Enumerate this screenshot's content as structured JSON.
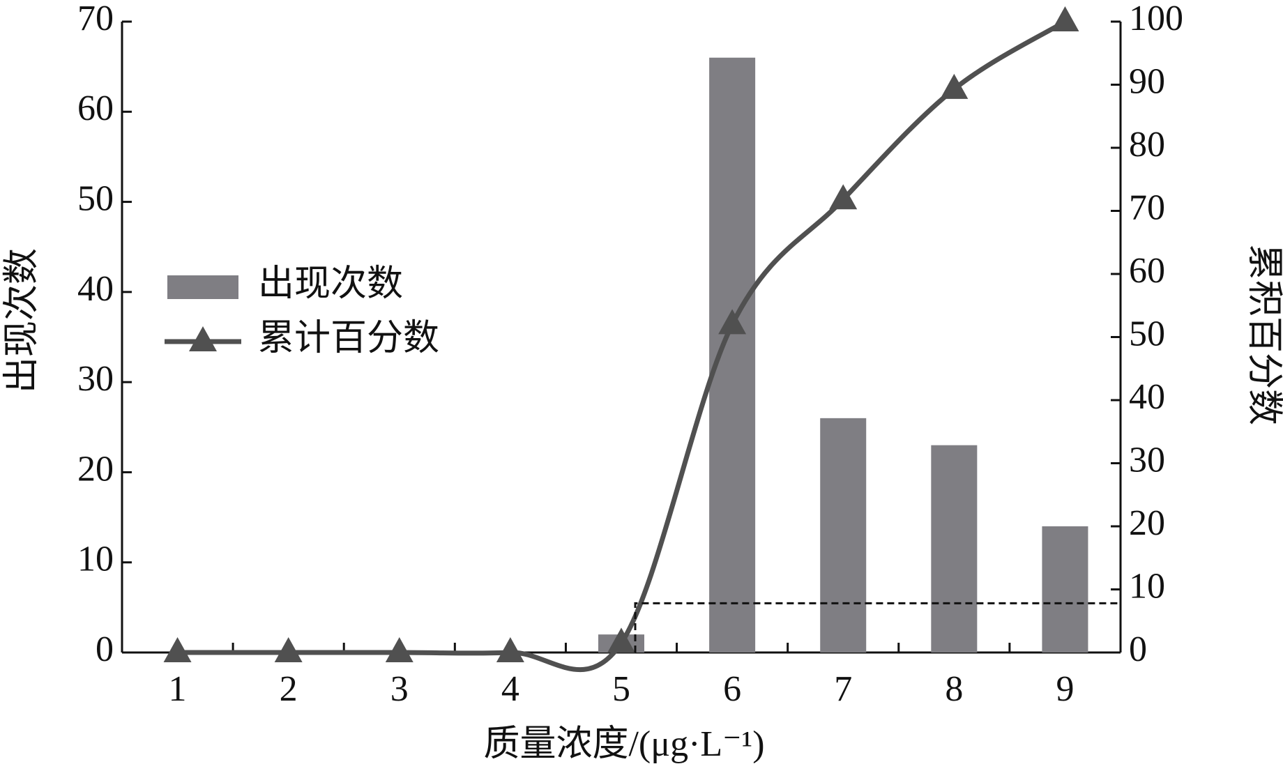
{
  "chart_data": {
    "type": "bar-line",
    "categories": [
      "1",
      "2",
      "3",
      "4",
      "5",
      "6",
      "7",
      "8",
      "9"
    ],
    "series": [
      {
        "name": "出现次数",
        "type": "bar",
        "color": "#7f7e83",
        "values": [
          0,
          0,
          0,
          0,
          2,
          66,
          26,
          23,
          14
        ]
      },
      {
        "name": "累计百分数",
        "type": "line",
        "axis": "y2",
        "color": "#505050",
        "values": [
          0,
          0,
          0,
          0,
          1.5,
          52,
          71.8,
          89.3,
          100
        ]
      }
    ],
    "ylim": [
      0,
      70
    ],
    "yticks": [
      0,
      10,
      20,
      30,
      40,
      50,
      60,
      70
    ],
    "y2lim": [
      0,
      100
    ],
    "y2ticks": [
      0,
      10,
      20,
      30,
      40,
      50,
      60,
      70,
      80,
      90,
      100
    ],
    "ylabel": "出现次数",
    "y2label": "累积百分数",
    "xlabel": "质量浓度/(μg·L⁻¹)",
    "reference_y2": 7.8
  }
}
